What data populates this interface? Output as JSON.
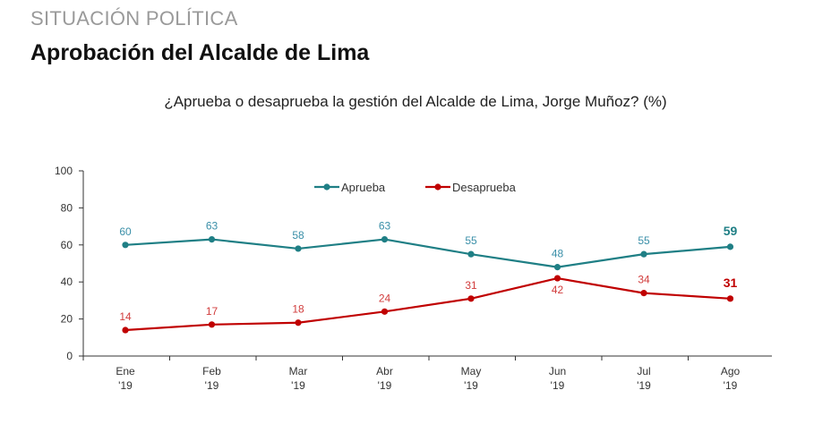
{
  "header": {
    "section": "SITUACIÓN POLÍTICA",
    "title": "Aprobación del Alcalde de Lima"
  },
  "chart_data": {
    "type": "line",
    "title": "¿Aprueba o desaprueba la gestión del Alcalde de Lima, Jorge Muñoz? (%)",
    "categories": [
      [
        "Ene",
        "'19"
      ],
      [
        "Feb",
        "'19"
      ],
      [
        "Mar",
        "'19"
      ],
      [
        "Abr",
        "'19"
      ],
      [
        "May",
        "'19"
      ],
      [
        "Jun",
        "'19"
      ],
      [
        "Jul",
        "'19"
      ],
      [
        "Ago",
        "'19"
      ]
    ],
    "y_ticks": [
      0,
      20,
      40,
      60,
      80,
      100
    ],
    "ylim": [
      0,
      100
    ],
    "grid": false,
    "legend": "top-center",
    "series": [
      {
        "name": "Aprueba",
        "color": "#1f7f85",
        "label_color": "#3a8fa8",
        "values": [
          60,
          63,
          58,
          63,
          55,
          48,
          55,
          59
        ],
        "label_position": "above"
      },
      {
        "name": "Desaprueba",
        "color": "#c00000",
        "label_color": "#d13c3c",
        "values": [
          14,
          17,
          18,
          24,
          31,
          42,
          34,
          31
        ],
        "label_position": "above_except_jun"
      }
    ]
  }
}
